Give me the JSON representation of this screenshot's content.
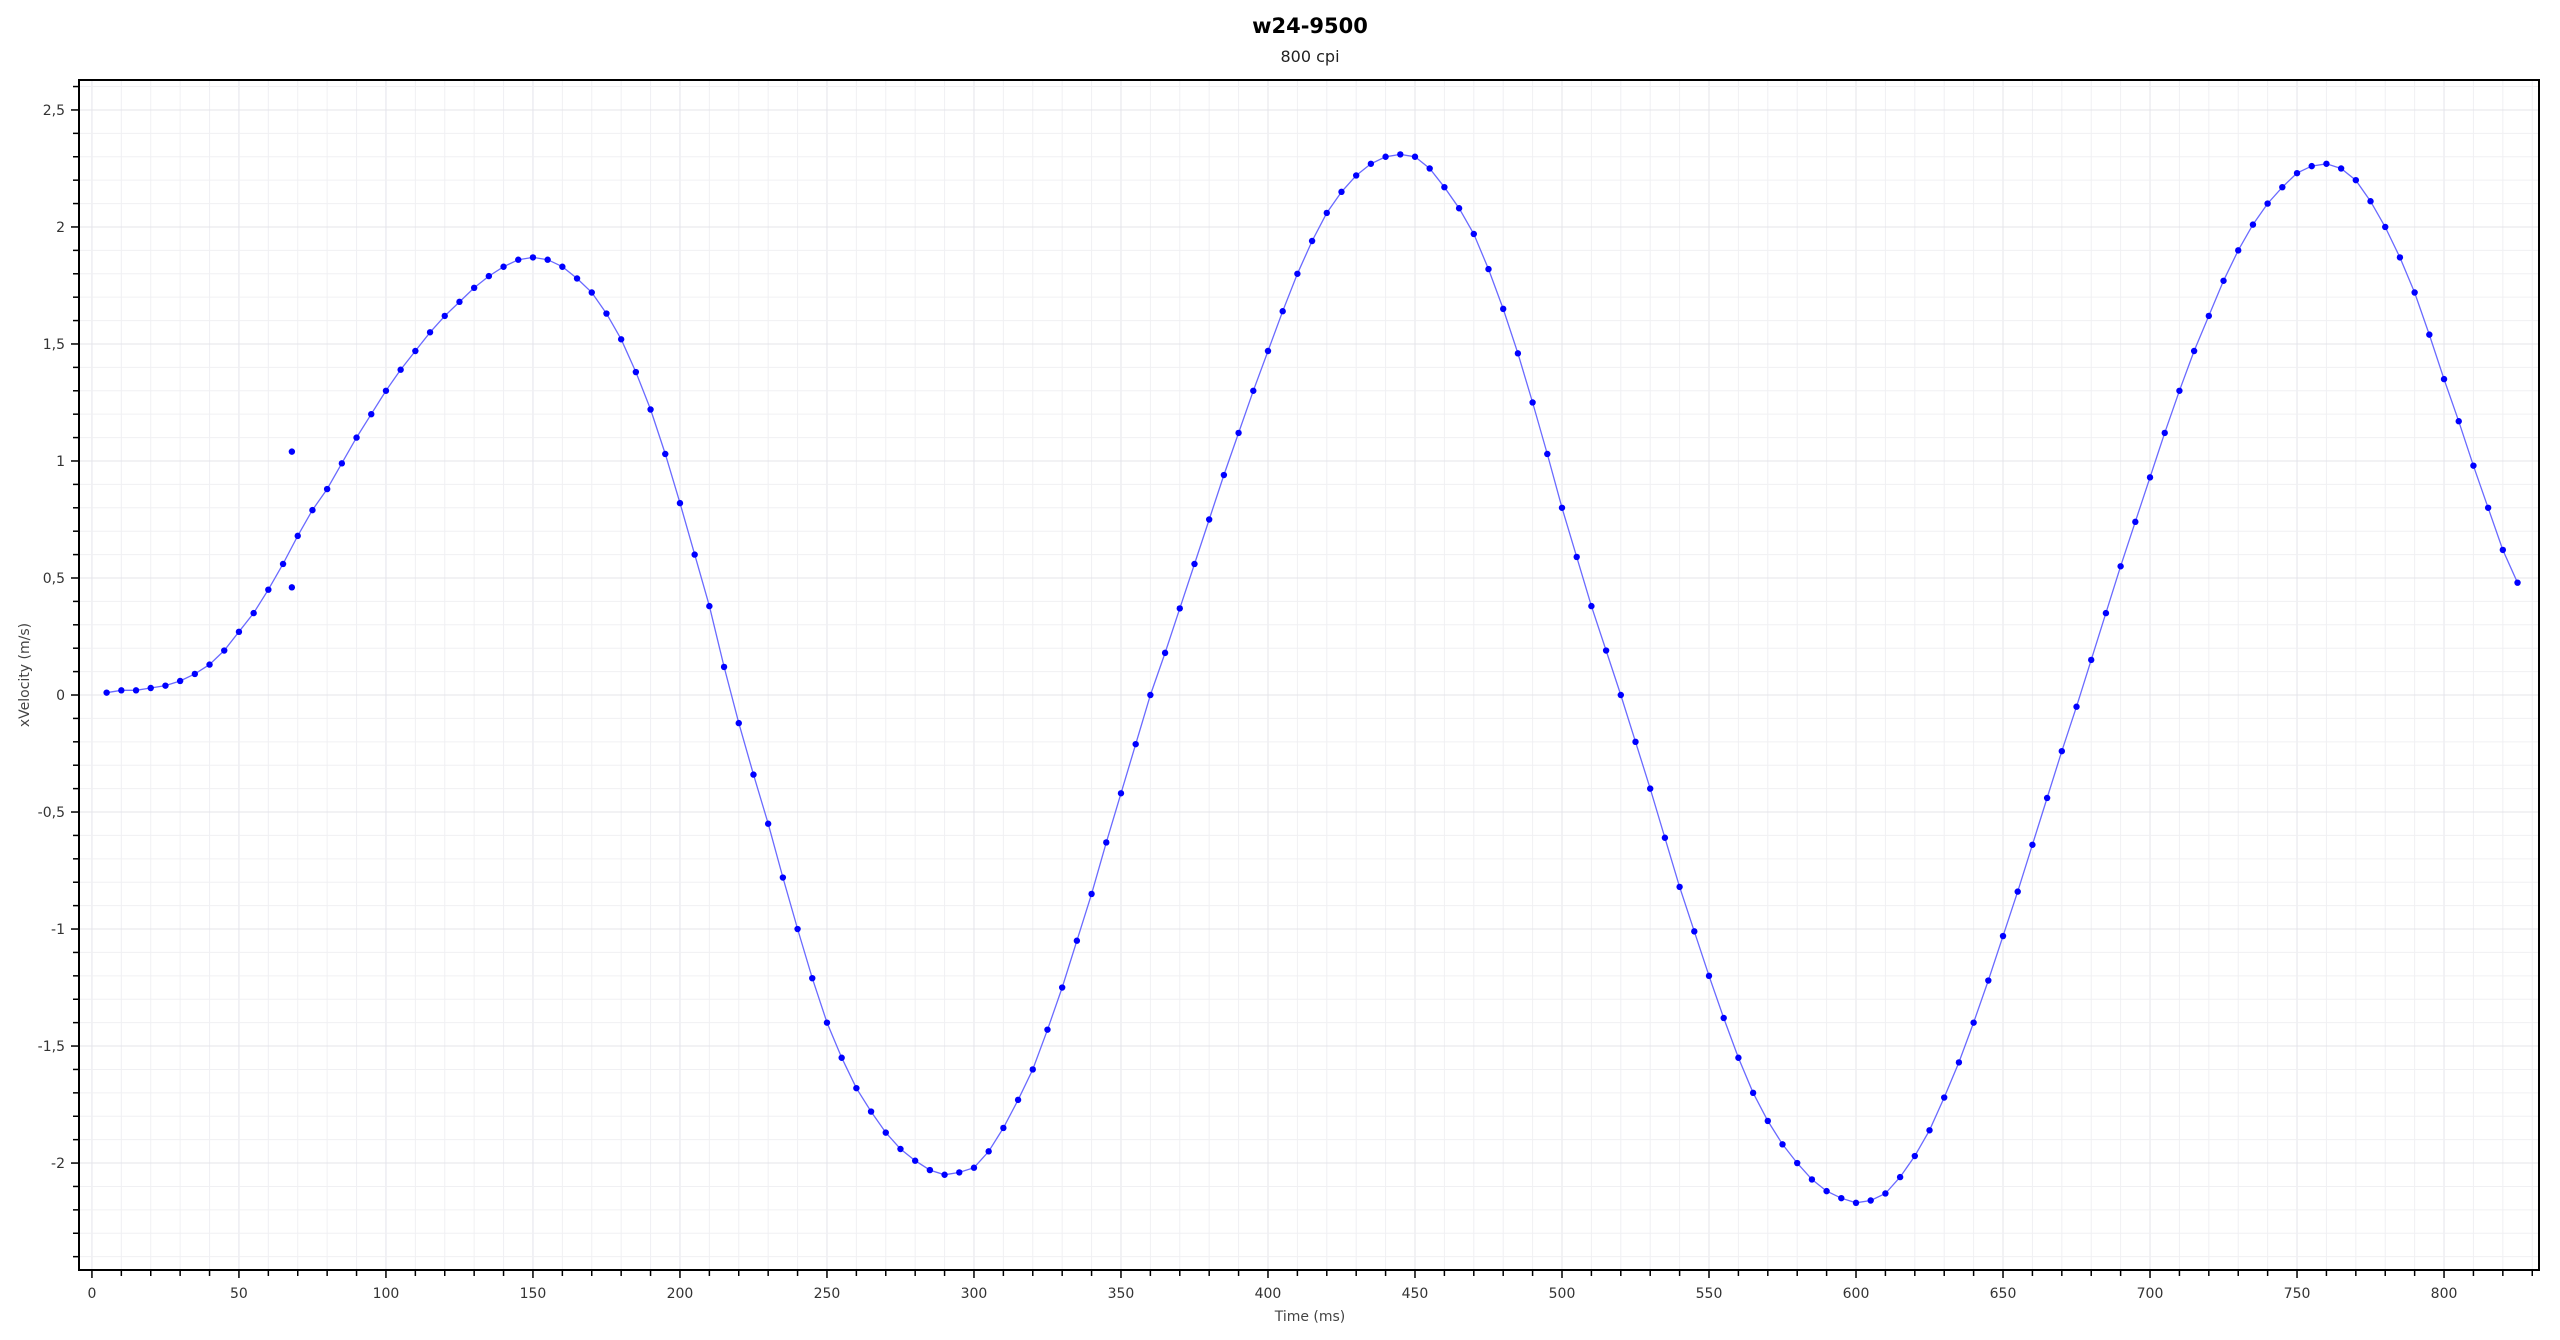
{
  "chart_data": {
    "type": "scatter",
    "title": "w24-9500",
    "subtitle": "800 cpi",
    "xlabel": "Time (ms)",
    "ylabel": "xVelocity (m/s)",
    "xlim": [
      -4.4,
      832.3
    ],
    "ylim": [
      -2.457,
      2.628
    ],
    "x_ticks": [
      0,
      50,
      100,
      150,
      200,
      250,
      300,
      350,
      400,
      450,
      500,
      550,
      600,
      650,
      700,
      750,
      800
    ],
    "x_tick_labels": [
      "0",
      "50",
      "100",
      "150",
      "200",
      "250",
      "300",
      "350",
      "400",
      "450",
      "500",
      "550",
      "600",
      "650",
      "700",
      "750",
      "800"
    ],
    "y_ticks": [
      2.5,
      2,
      1.5,
      1,
      0.5,
      0,
      -0.5,
      -1,
      -1.5,
      -2
    ],
    "y_tick_labels": [
      "2,5",
      "2",
      "1,5",
      "1",
      "0,5",
      "0",
      "-0,5",
      "-1",
      "-1,5",
      "-2"
    ],
    "x_minor_step": 10,
    "y_minor_step": 0.1,
    "grid": true,
    "colors": {
      "points": "#0000ff",
      "line": "#6a6aff",
      "grid_minor": "#f0f0f3",
      "grid_major": "#e4e4ea",
      "axis": "#000000"
    },
    "series": [
      {
        "x": [
          5,
          10,
          15,
          20,
          25,
          30,
          35,
          40,
          45,
          50,
          55,
          60,
          65,
          70,
          75,
          80,
          85,
          90,
          95,
          100,
          105,
          110,
          115,
          120,
          125,
          130,
          135,
          140,
          145,
          150,
          155,
          160,
          165,
          170,
          175,
          180,
          185,
          190,
          195,
          200,
          205,
          210,
          215,
          220,
          225,
          230,
          235,
          240,
          245,
          250,
          255,
          260,
          265,
          270,
          275,
          280,
          285,
          290,
          295,
          300,
          305,
          310,
          315,
          320,
          325,
          330,
          335,
          340,
          345,
          350,
          355,
          360,
          365,
          370,
          375,
          380,
          385,
          390,
          395,
          400,
          405,
          410,
          415,
          420,
          425,
          430,
          435,
          440,
          445,
          450,
          455,
          460,
          465,
          470,
          475,
          480,
          485,
          490,
          495,
          500,
          505,
          510,
          515,
          520,
          525,
          530,
          535,
          540,
          545,
          550,
          555,
          560,
          565,
          570,
          575,
          580,
          585,
          590,
          595,
          600,
          605,
          610,
          615,
          620,
          625,
          630,
          635,
          640,
          645,
          650,
          655,
          660,
          665,
          670,
          675,
          680,
          685,
          690,
          695,
          700,
          705,
          710,
          715,
          720,
          725,
          730,
          735,
          740,
          745,
          750,
          755,
          760,
          765,
          770,
          775,
          780,
          785,
          790,
          795,
          800,
          805,
          810,
          815,
          820,
          825
        ],
        "y": [
          0.01,
          0.02,
          0.02,
          0.03,
          0.04,
          0.06,
          0.09,
          0.13,
          0.19,
          0.27,
          0.35,
          0.45,
          0.56,
          0.68,
          0.79,
          0.88,
          0.99,
          1.1,
          1.2,
          1.3,
          1.39,
          1.47,
          1.55,
          1.62,
          1.68,
          1.74,
          1.79,
          1.83,
          1.86,
          1.87,
          1.86,
          1.83,
          1.78,
          1.72,
          1.63,
          1.52,
          1.38,
          1.22,
          1.03,
          0.82,
          0.6,
          0.38,
          0.12,
          -0.12,
          -0.34,
          -0.55,
          -0.78,
          -1.0,
          -1.21,
          -1.4,
          -1.55,
          -1.68,
          -1.78,
          -1.87,
          -1.94,
          -1.99,
          -2.03,
          -2.05,
          -2.04,
          -2.02,
          -1.95,
          -1.85,
          -1.73,
          -1.6,
          -1.43,
          -1.25,
          -1.05,
          -0.85,
          -0.63,
          -0.42,
          -0.21,
          0.0,
          0.18,
          0.37,
          0.56,
          0.75,
          0.94,
          1.12,
          1.3,
          1.47,
          1.64,
          1.8,
          1.94,
          2.06,
          2.15,
          2.22,
          2.27,
          2.3,
          2.31,
          2.3,
          2.25,
          2.17,
          2.08,
          1.97,
          1.82,
          1.65,
          1.46,
          1.25,
          1.03,
          0.8,
          0.59,
          0.38,
          0.19,
          0.0,
          -0.2,
          -0.4,
          -0.61,
          -0.82,
          -1.01,
          -1.2,
          -1.38,
          -1.55,
          -1.7,
          -1.82,
          -1.92,
          -2.0,
          -2.07,
          -2.12,
          -2.15,
          -2.17,
          -2.16,
          -2.13,
          -2.06,
          -1.97,
          -1.86,
          -1.72,
          -1.57,
          -1.4,
          -1.22,
          -1.03,
          -0.84,
          -0.64,
          -0.44,
          -0.24,
          -0.05,
          0.15,
          0.35,
          0.55,
          0.74,
          0.93,
          1.12,
          1.3,
          1.47,
          1.62,
          1.77,
          1.9,
          2.01,
          2.1,
          2.17,
          2.23,
          2.26,
          2.27,
          2.25,
          2.2,
          2.11,
          2.0,
          1.87,
          1.72,
          1.54,
          1.35,
          1.17,
          0.98,
          0.8,
          0.62,
          0.48
        ]
      }
    ],
    "outliers": [
      [
        68,
        1.04
      ],
      [
        68,
        0.46
      ]
    ]
  }
}
